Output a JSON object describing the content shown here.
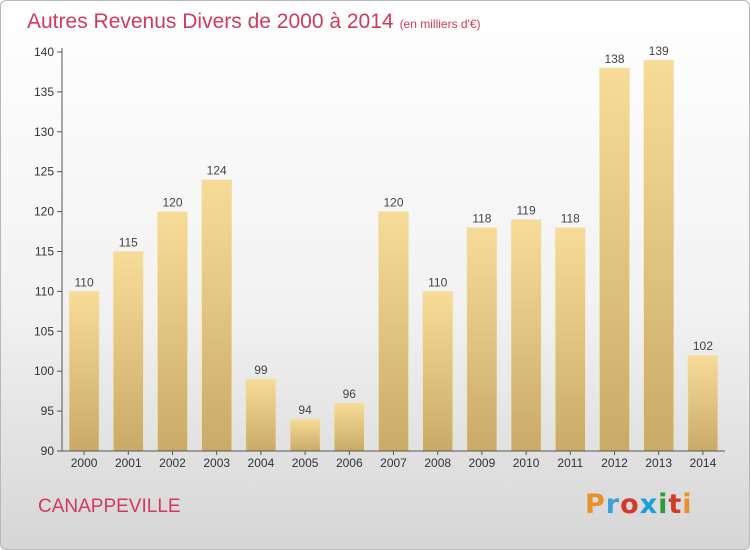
{
  "header": {
    "title": "Autres Revenus Divers de 2000 à 2014",
    "unit": "(en milliers d'€)"
  },
  "footer": {
    "commune": "CANAPPEVILLE",
    "logo": "Proxiti"
  },
  "colors": {
    "title": "#d13a5c",
    "bar_light": "#f7dc98",
    "bar_dark": "#c9ab67",
    "logo_letters": [
      "#e8902a",
      "#3f9fd6",
      "#d23a2a",
      "#1a9fd9",
      "#2e9a3a",
      "#d23a2a",
      "#e8902a"
    ]
  },
  "chart_data": {
    "type": "bar",
    "categories": [
      "2000",
      "2001",
      "2002",
      "2003",
      "2004",
      "2005",
      "2006",
      "2007",
      "2008",
      "2009",
      "2010",
      "2011",
      "2012",
      "2013",
      "2014"
    ],
    "values": [
      110,
      115,
      120,
      124,
      99,
      94,
      96,
      120,
      110,
      118,
      119,
      118,
      138,
      139,
      102
    ],
    "ylim": [
      90,
      140
    ],
    "yticks": [
      90,
      95,
      100,
      105,
      110,
      115,
      120,
      125,
      130,
      135,
      140
    ],
    "data_labels": true,
    "grid": false,
    "legend": "none"
  }
}
